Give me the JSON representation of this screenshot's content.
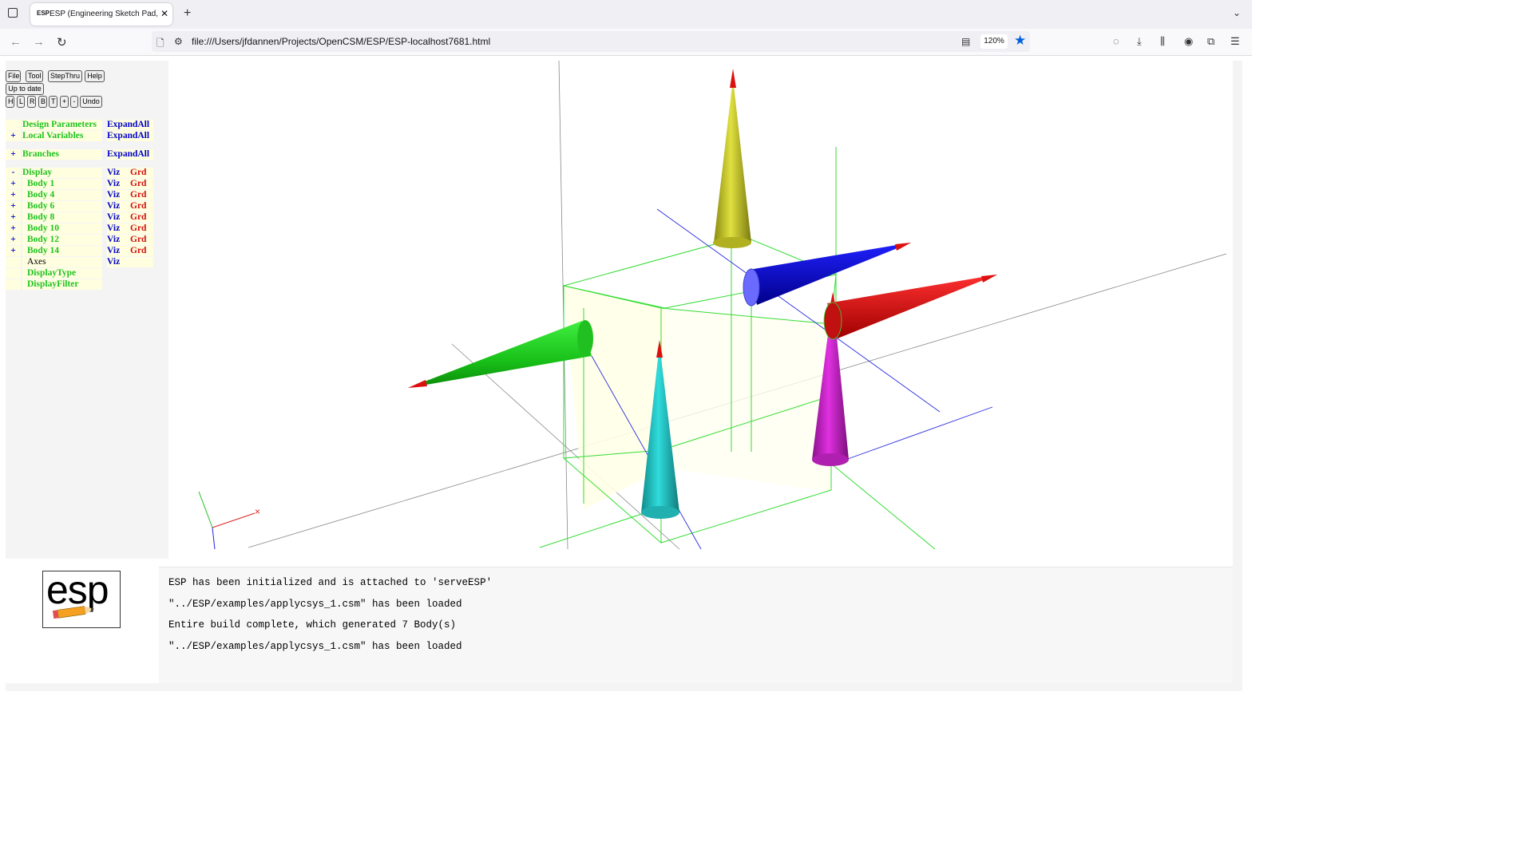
{
  "browser": {
    "tab_title": "ESP (Engineering Sketch Pad, V",
    "favicon_text": "ESP",
    "url": "file:///Users/jfdannen/Projects/OpenCSM/ESP/ESP-localhost7681.html",
    "zoom": "120%"
  },
  "toolbar": {
    "row1": [
      "File",
      "Tool",
      "StepThru",
      "Help"
    ],
    "status": "Up to date",
    "row2": [
      "H",
      "L",
      "R",
      "B",
      "T",
      "+",
      "-",
      "Undo"
    ]
  },
  "tree": {
    "design_params": {
      "name": "Design Parameters",
      "action": "ExpandAll"
    },
    "local_vars": {
      "pm": "+",
      "name": "Local Variables",
      "action": "ExpandAll"
    },
    "branches": {
      "pm": "+",
      "name": "Branches",
      "action": "ExpandAll"
    },
    "display": {
      "pm": "-",
      "name": "Display",
      "viz": "Viz",
      "grd": "Grd"
    },
    "bodies": [
      {
        "pm": "+",
        "name": "Body 1",
        "viz": "Viz",
        "grd": "Grd"
      },
      {
        "pm": "+",
        "name": "Body 4",
        "viz": "Viz",
        "grd": "Grd"
      },
      {
        "pm": "+",
        "name": "Body 6",
        "viz": "Viz",
        "grd": "Grd"
      },
      {
        "pm": "+",
        "name": "Body 8",
        "viz": "Viz",
        "grd": "Grd"
      },
      {
        "pm": "+",
        "name": "Body 10",
        "viz": "Viz",
        "grd": "Grd"
      },
      {
        "pm": "+",
        "name": "Body 12",
        "viz": "Viz",
        "grd": "Grd"
      },
      {
        "pm": "+",
        "name": "Body 14",
        "viz": "Viz",
        "grd": "Grd"
      }
    ],
    "axes": {
      "name": "Axes",
      "viz": "Viz"
    },
    "display_type": "DisplayType",
    "display_filter": "DisplayFilter"
  },
  "logo": {
    "text": "esp"
  },
  "messages": [
    "ESP has been initialized and is attached to 'serveESP'",
    "\"../ESP/examples/applycsys_1.csm\" has been loaded",
    "Entire build complete, which generated 7 Body(s)",
    "\"../ESP/examples/applycsys_1.csm\" has been loaded"
  ],
  "colors": {
    "green": "#1fc21f",
    "blue": "#0000cc",
    "red": "#d01010",
    "tree_bg": "#ffffe0"
  }
}
